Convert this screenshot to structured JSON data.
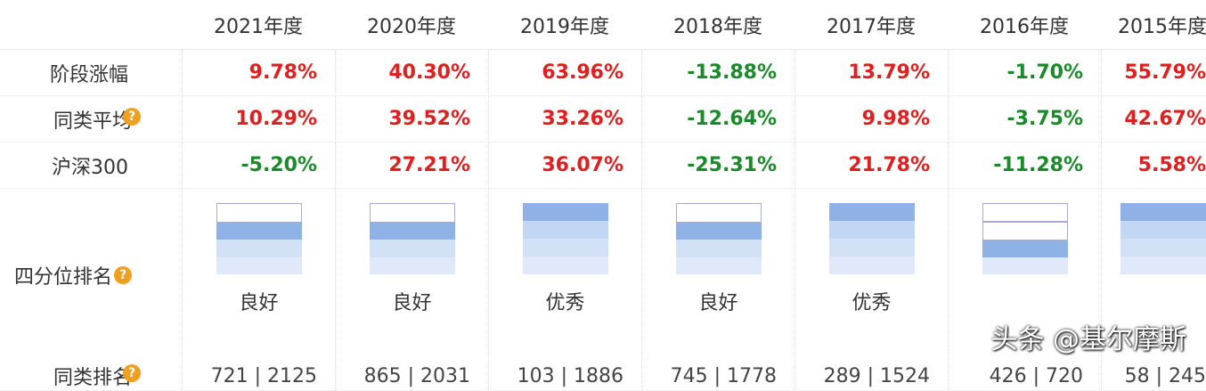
{
  "columns": [
    "2021年度",
    "2020年度",
    "2019年度",
    "2018年度",
    "2017年度",
    "2016年度",
    "2015年度"
  ],
  "rows": {
    "stage_gain": {
      "label": "阶段涨幅",
      "values": [
        "9.78%",
        "40.30%",
        "63.96%",
        "-13.88%",
        "13.79%",
        "-1.70%",
        "55.79%"
      ]
    },
    "peer_avg": {
      "label": "同类平均",
      "values": [
        "10.29%",
        "39.52%",
        "33.26%",
        "-12.64%",
        "9.98%",
        "-3.75%",
        "42.67%"
      ]
    },
    "hs300": {
      "label": "沪深300",
      "values": [
        "-5.20%",
        "27.21%",
        "36.07%",
        "-25.31%",
        "21.78%",
        "-11.28%",
        "5.58%"
      ]
    },
    "peer_rank": {
      "label": "同类排名",
      "values": [
        "721 | 2125",
        "865 | 2031",
        "103 | 1886",
        "745 | 1778",
        "289 | 1524",
        "426 | 720",
        "58 | 245"
      ]
    },
    "quartile": {
      "label": "四分位排名",
      "levels": [
        3,
        3,
        4,
        3,
        4,
        2,
        4
      ],
      "values": [
        "良好",
        "良好",
        "优秀",
        "良好",
        "优秀",
        "",
        ""
      ]
    }
  },
  "help_icon": "?",
  "watermark": "头条 @基尔摩斯",
  "colors": {
    "positive": "#e02020",
    "negative": "#1a8a2a",
    "help": "#f0a020",
    "quartile_active": "#8eb2e6"
  }
}
